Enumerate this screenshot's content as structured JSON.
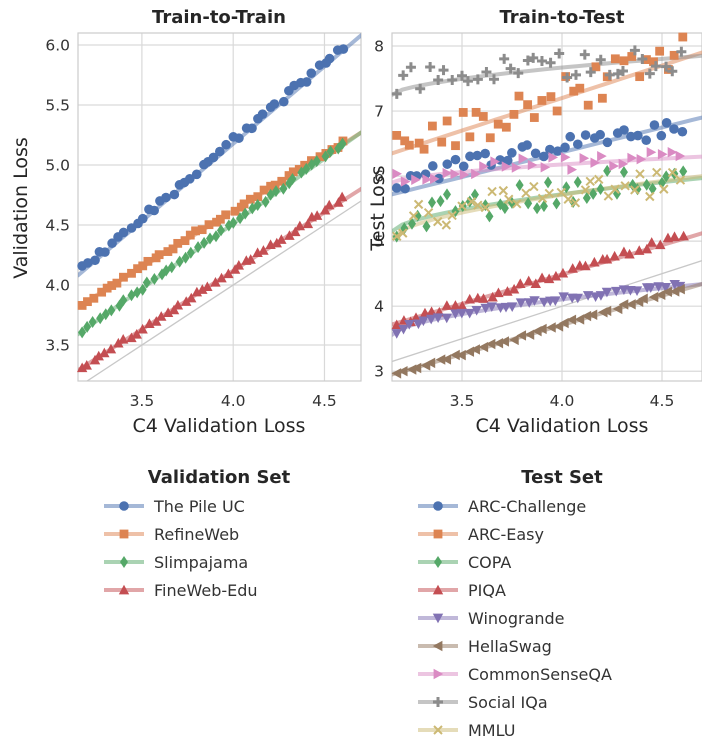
{
  "chart_data": [
    {
      "type": "scatter",
      "title": "Train-to-Train",
      "xlabel": "C4 Validation Loss",
      "ylabel": "Validation Loss",
      "xlim": [
        3.15,
        4.7
      ],
      "ylim": [
        3.2,
        6.1
      ],
      "xticks": [
        3.5,
        4.0,
        4.5
      ],
      "yticks": [
        3.5,
        4.0,
        4.5,
        5.0,
        5.5,
        6.0
      ],
      "grid": true,
      "legend_title": "Validation Set",
      "legend_position": "below",
      "x_range": [
        3.17,
        4.6
      ],
      "series": [
        {
          "name": "The Pile UC",
          "color": "#4C72B0",
          "marker": "circle",
          "y_start": 4.13,
          "y_end": 5.98,
          "fit": [
            4.08,
            6.08
          ],
          "jitter": 0.03,
          "count": 44
        },
        {
          "name": "RefineWeb",
          "color": "#DD8452",
          "marker": "square",
          "y_start": 3.84,
          "y_end": 5.19,
          "fit": [
            3.82,
            5.27
          ],
          "jitter": 0.015,
          "count": 44
        },
        {
          "name": "Slimpajama",
          "color": "#55A868",
          "marker": "diamond",
          "y_start": 3.61,
          "y_end": 5.18,
          "fit": [
            3.59,
            5.27
          ],
          "jitter": 0.015,
          "count": 44
        },
        {
          "name": "FineWeb-Edu",
          "color": "#C44E52",
          "marker": "triangle-up",
          "y_start": 3.31,
          "y_end": 4.72,
          "fit": [
            3.29,
            4.8
          ],
          "jitter": 0.015,
          "count": 44
        }
      ],
      "reference_line": {
        "x": [
          3.17,
          4.7
        ],
        "y": [
          3.17,
          4.7
        ]
      }
    },
    {
      "type": "scatter",
      "title": "Train-to-Test",
      "xlabel": "C4 Validation Loss",
      "ylabel": "Test Loss",
      "xlim": [
        3.15,
        4.7
      ],
      "ylim": [
        2.85,
        8.2
      ],
      "xticks": [
        3.5,
        4.0,
        4.5
      ],
      "yticks": [
        3,
        4,
        5,
        6,
        7,
        8
      ],
      "grid": true,
      "legend_title": "Test Set",
      "legend_position": "below",
      "x_range": [
        3.17,
        4.6
      ],
      "series": [
        {
          "name": "ARC-Challenge",
          "color": "#4C72B0",
          "marker": "circle",
          "y_start": 5.75,
          "y_end": 6.75,
          "fit": [
            5.72,
            6.9
          ],
          "jitter": 0.12,
          "count": 40
        },
        {
          "name": "ARC-Easy",
          "color": "#DD8452",
          "marker": "square",
          "y_start": 6.35,
          "y_end": 7.85,
          "fit": [
            6.35,
            7.9
          ],
          "jitter": 0.3,
          "count": 40
        },
        {
          "name": "COPA",
          "color": "#55A868",
          "marker": "diamond",
          "y_start": 5.25,
          "y_end": 5.95,
          "fit": [
            5.15,
            5.97
          ],
          "jitter": 0.25,
          "count": 40
        },
        {
          "name": "PIQA",
          "color": "#C44E52",
          "marker": "triangle-up",
          "y_start": 3.73,
          "y_end": 5.08,
          "fit": [
            3.72,
            5.12
          ],
          "jitter": 0.04,
          "count": 40
        },
        {
          "name": "Winogrande",
          "color": "#8172B3",
          "marker": "triangle-down",
          "y_start": 3.58,
          "y_end": 4.32,
          "fit": [
            3.56,
            4.34
          ],
          "jitter": 0.03,
          "count": 40
        },
        {
          "name": "HellaSwag",
          "color": "#937860",
          "marker": "triangle-left",
          "y_start": 2.96,
          "y_end": 4.28,
          "fit": [
            2.95,
            4.34
          ],
          "jitter": 0.02,
          "count": 40
        },
        {
          "name": "CommonSenseQA",
          "color": "#DA8BC3",
          "marker": "triangle-right",
          "y_start": 5.95,
          "y_end": 6.3,
          "fit": [
            5.9,
            6.3
          ],
          "jitter": 0.12,
          "count": 30
        },
        {
          "name": "Social IQa",
          "color": "#8C8C8C",
          "marker": "plus",
          "y_start": 7.45,
          "y_end": 7.8,
          "fit": [
            7.25,
            7.85
          ],
          "jitter": 0.2,
          "count": 36
        },
        {
          "name": "MMLU",
          "color": "#CCB974",
          "marker": "x",
          "y_start": 5.2,
          "y_end": 5.95,
          "fit": [
            5.05,
            6.0
          ],
          "jitter": 0.22,
          "count": 36
        }
      ],
      "reference_line": {
        "x": [
          3.15,
          4.7
        ],
        "y": [
          3.15,
          4.7
        ]
      }
    }
  ]
}
